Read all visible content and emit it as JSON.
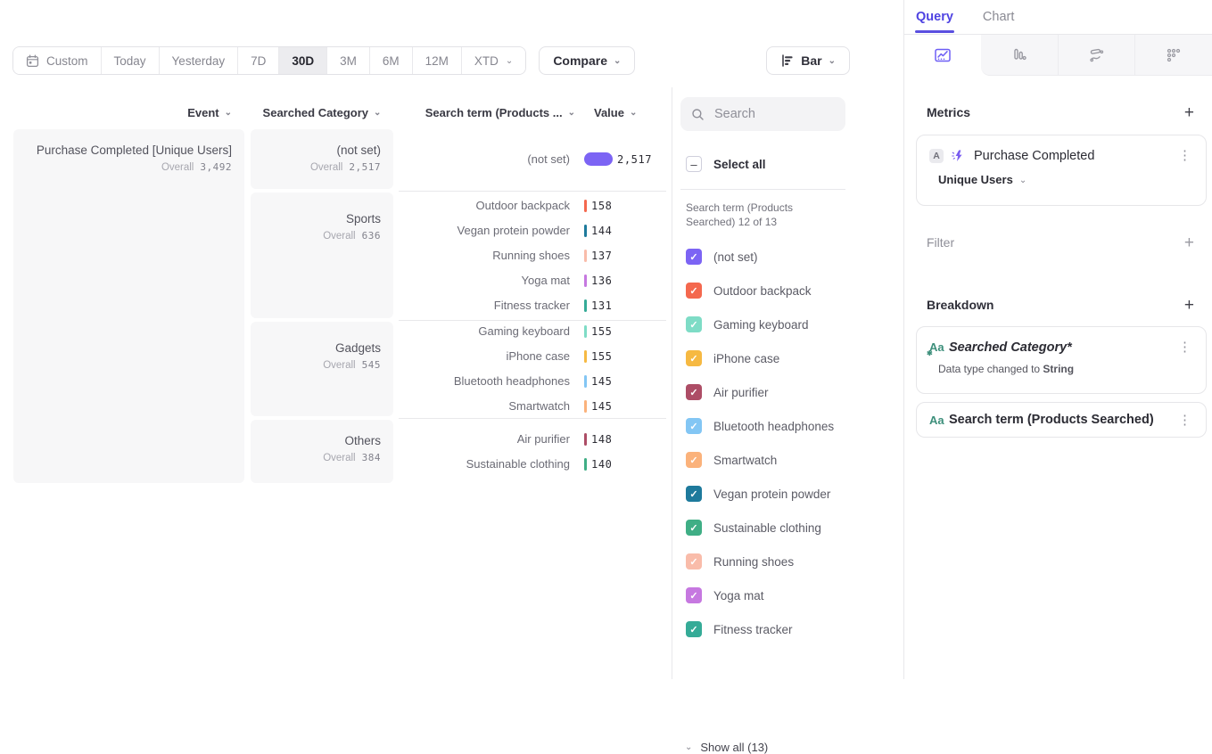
{
  "toolbar": {
    "date_ranges": [
      {
        "label": "Custom",
        "icon": "calendar-icon",
        "selected": false,
        "chevron": false
      },
      {
        "label": "Today",
        "selected": false,
        "chevron": false
      },
      {
        "label": "Yesterday",
        "selected": false,
        "chevron": false
      },
      {
        "label": "7D",
        "selected": false,
        "chevron": false
      },
      {
        "label": "30D",
        "selected": true,
        "chevron": false
      },
      {
        "label": "3M",
        "selected": false,
        "chevron": false
      },
      {
        "label": "6M",
        "selected": false,
        "chevron": false
      },
      {
        "label": "12M",
        "selected": false,
        "chevron": false
      },
      {
        "label": "XTD",
        "selected": false,
        "chevron": true
      }
    ],
    "compare_label": "Compare",
    "chart_type_label": "Bar"
  },
  "table": {
    "overall_label": "Overall",
    "headers": {
      "event": "Event",
      "category": "Searched Category",
      "term": "Search term (Products ...",
      "value": "Value"
    },
    "event": {
      "name": "Purchase Completed [Unique Users]",
      "overall": "3,492"
    },
    "categories": [
      {
        "name": "(not set)",
        "overall": "2,517",
        "rows": [
          {
            "label": "(not set)",
            "value": "2,517",
            "color": "#7c64f4",
            "big": true
          }
        ]
      },
      {
        "name": "Sports",
        "overall": "636",
        "rows": [
          {
            "label": "Outdoor backpack",
            "value": "158",
            "color": "#f4684e"
          },
          {
            "label": "Vegan protein powder",
            "value": "144",
            "color": "#1e7a9c"
          },
          {
            "label": "Running shoes",
            "value": "137",
            "color": "#f9bcaa"
          },
          {
            "label": "Yoga mat",
            "value": "136",
            "color": "#c678e0"
          },
          {
            "label": "Fitness tracker",
            "value": "131",
            "color": "#35ab97"
          }
        ]
      },
      {
        "name": "Gadgets",
        "overall": "545",
        "rows": [
          {
            "label": "Gaming keyboard",
            "value": "155",
            "color": "#7edcc6"
          },
          {
            "label": "iPhone case",
            "value": "155",
            "color": "#f6b942"
          },
          {
            "label": "Bluetooth headphones",
            "value": "145",
            "color": "#83c6f4"
          },
          {
            "label": "Smartwatch",
            "value": "145",
            "color": "#fbb27b"
          }
        ]
      },
      {
        "name": "Others",
        "overall": "384",
        "rows": [
          {
            "label": "Air purifier",
            "value": "148",
            "color": "#ad4d66"
          },
          {
            "label": "Sustainable clothing",
            "value": "140",
            "color": "#3fae85"
          }
        ]
      }
    ]
  },
  "filter_panel": {
    "search_placeholder": "Search",
    "select_all_label": "Select all",
    "list_label": "Search term (Products Searched) 12 of 13",
    "items": [
      {
        "label": "(not set)",
        "color": "#7c64f4",
        "checked": true
      },
      {
        "label": "Outdoor backpack",
        "color": "#f4684e",
        "checked": true
      },
      {
        "label": "Gaming keyboard",
        "color": "#7edcc6",
        "checked": true
      },
      {
        "label": "iPhone case",
        "color": "#f6b942",
        "checked": true
      },
      {
        "label": "Air purifier",
        "color": "#ad4d66",
        "checked": true
      },
      {
        "label": "Bluetooth headphones",
        "color": "#83c6f4",
        "checked": true
      },
      {
        "label": "Smartwatch",
        "color": "#fbb27b",
        "checked": true
      },
      {
        "label": "Vegan protein powder",
        "color": "#1e7a9c",
        "checked": true
      },
      {
        "label": "Sustainable clothing",
        "color": "#3fae85",
        "checked": true
      },
      {
        "label": "Running shoes",
        "color": "#f9bcaa",
        "checked": true
      },
      {
        "label": "Yoga mat",
        "color": "#c678e0",
        "checked": true
      },
      {
        "label": "Fitness tracker",
        "color": "#35ab97",
        "checked": true,
        "pattern": true
      }
    ],
    "show_all_label": "Show all (13)"
  },
  "query_panel": {
    "tabs": [
      {
        "label": "Query",
        "active": true
      },
      {
        "label": "Chart",
        "active": false
      }
    ],
    "view_tabs": [
      {
        "icon": "insights-chart-icon",
        "active": true
      },
      {
        "icon": "bar-distribution-icon",
        "active": false
      },
      {
        "icon": "flows-icon",
        "active": false
      },
      {
        "icon": "retention-icon",
        "active": false
      }
    ],
    "metrics": {
      "title": "Metrics",
      "badge": "A",
      "event_name": "Purchase Completed",
      "aggregation": "Unique Users"
    },
    "filter": {
      "title": "Filter"
    },
    "breakdown": {
      "title": "Breakdown",
      "cards": [
        {
          "icon": "string-type-icon",
          "name": "Searched Category*",
          "note_prefix": "Data type changed to ",
          "note_bold": "String"
        },
        {
          "icon": "string-type-icon",
          "name": "Search term (Products Searched)"
        }
      ]
    }
  },
  "chart_data": {
    "type": "bar",
    "title": "Purchase Completed [Unique Users]",
    "overall": 3492,
    "groups": [
      {
        "category": "(not set)",
        "overall": 2517,
        "terms": [
          {
            "label": "(not set)",
            "value": 2517
          }
        ]
      },
      {
        "category": "Sports",
        "overall": 636,
        "terms": [
          {
            "label": "Outdoor backpack",
            "value": 158
          },
          {
            "label": "Vegan protein powder",
            "value": 144
          },
          {
            "label": "Running shoes",
            "value": 137
          },
          {
            "label": "Yoga mat",
            "value": 136
          },
          {
            "label": "Fitness tracker",
            "value": 131
          }
        ]
      },
      {
        "category": "Gadgets",
        "overall": 545,
        "terms": [
          {
            "label": "Gaming keyboard",
            "value": 155
          },
          {
            "label": "iPhone case",
            "value": 155
          },
          {
            "label": "Bluetooth headphones",
            "value": 145
          },
          {
            "label": "Smartwatch",
            "value": 145
          }
        ]
      },
      {
        "category": "Others",
        "overall": 384,
        "terms": [
          {
            "label": "Air purifier",
            "value": 148
          },
          {
            "label": "Sustainable clothing",
            "value": 140
          }
        ]
      }
    ]
  }
}
